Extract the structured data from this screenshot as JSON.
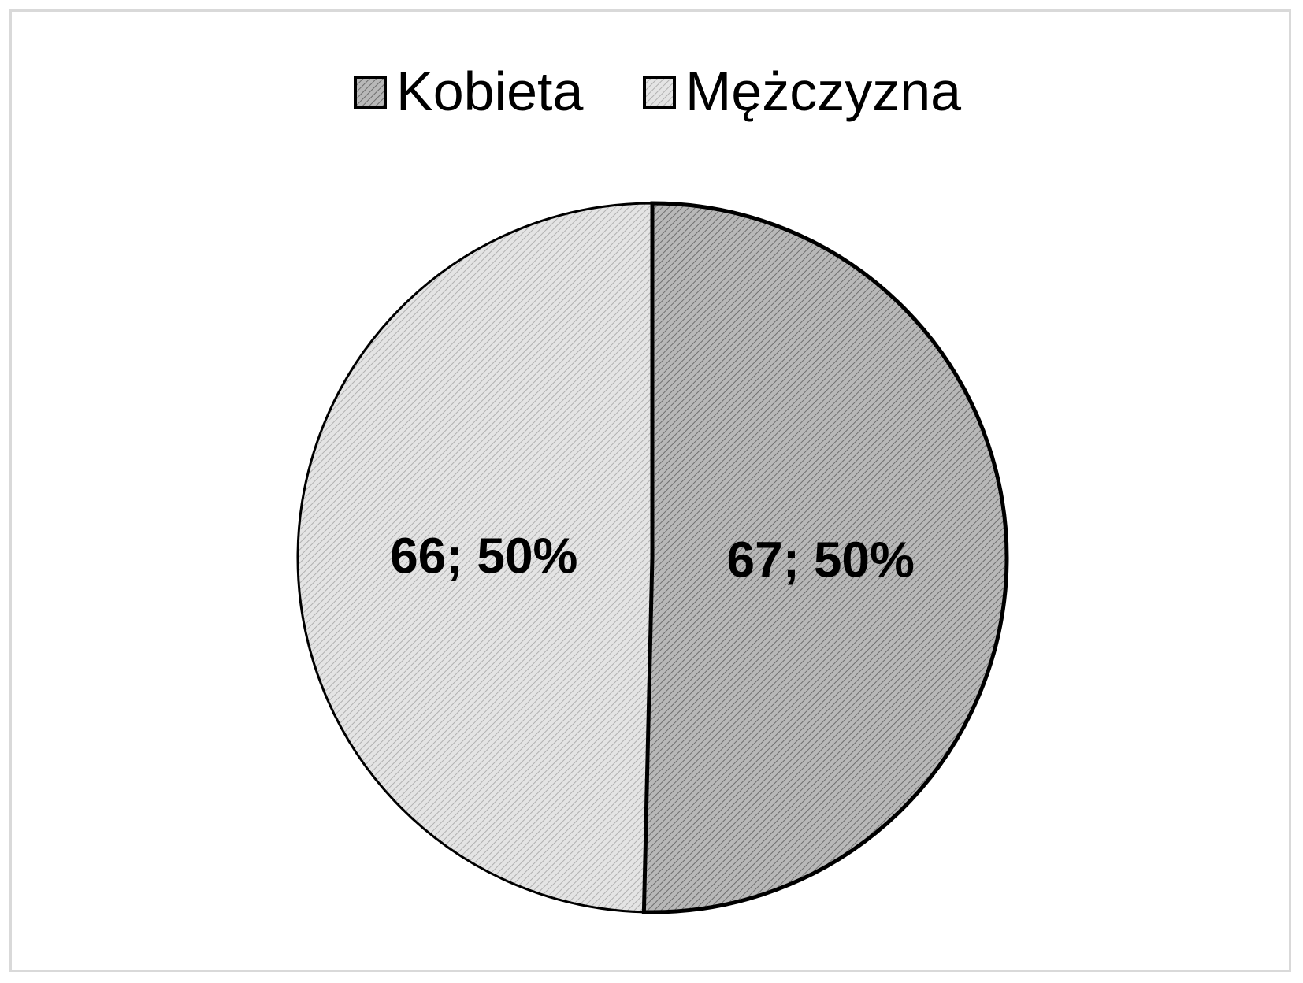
{
  "chart_data": {
    "type": "pie",
    "categories": [
      "Kobieta",
      "Mężczyzna"
    ],
    "values": [
      67,
      66
    ],
    "percentages": [
      "50%",
      "50%"
    ],
    "data_labels": [
      "67; 50%",
      "66; 50%"
    ],
    "legend": {
      "placement": "top",
      "entries": [
        "Kobieta",
        "Mężczyzna"
      ]
    },
    "colors": {
      "Kobieta": "#a6a6a6",
      "Mężczyzna": "#d4d4d4"
    },
    "start_angle": "12 o'clock, clockwise"
  }
}
